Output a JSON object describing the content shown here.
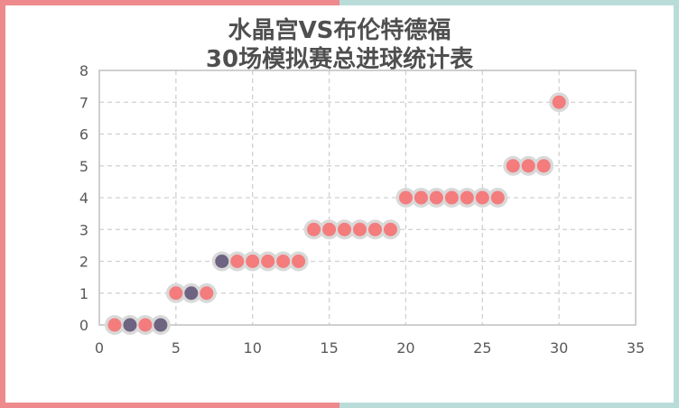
{
  "chart_data": {
    "type": "scatter",
    "title": "水晶宫VS布伦特德福\n30场模拟赛总进球统计表",
    "title_lines": [
      "水晶宫VS布伦特德福",
      "30场模拟赛总进球统计表"
    ],
    "xlabel": "",
    "ylabel": "",
    "xlim": [
      0,
      35
    ],
    "ylim": [
      0,
      8
    ],
    "xticks": [
      0,
      5,
      10,
      15,
      20,
      25,
      30,
      35
    ],
    "yticks": [
      0,
      1,
      2,
      3,
      4,
      5,
      6,
      7,
      8
    ],
    "grid": true,
    "legend": null,
    "series": [
      {
        "name": "总进球",
        "x": [
          1,
          2,
          3,
          4,
          5,
          6,
          7,
          8,
          9,
          10,
          11,
          12,
          13,
          14,
          15,
          16,
          17,
          18,
          19,
          20,
          21,
          22,
          23,
          24,
          25,
          26,
          27,
          28,
          29,
          30
        ],
        "y": [
          0,
          0,
          0,
          0,
          1,
          1,
          1,
          2,
          2,
          2,
          2,
          2,
          2,
          3,
          3,
          3,
          3,
          3,
          3,
          4,
          4,
          4,
          4,
          4,
          4,
          4,
          5,
          5,
          5,
          7
        ],
        "highlight": [
          false,
          true,
          false,
          true,
          false,
          true,
          false,
          true,
          false,
          false,
          false,
          false,
          false,
          false,
          false,
          false,
          false,
          false,
          false,
          false,
          false,
          false,
          false,
          false,
          false,
          false,
          false,
          false,
          false,
          false
        ]
      }
    ],
    "colors": {
      "point": "#f47c7c",
      "highlight_point": "#6e6481",
      "point_halo": "#d9d9d9",
      "grid": "#d0d0d0",
      "axis": "#bfbfbf",
      "title": "#4f4f4f"
    }
  },
  "frame": {
    "left_color": "#ee8a8d",
    "right_color": "#b9dcd9"
  }
}
